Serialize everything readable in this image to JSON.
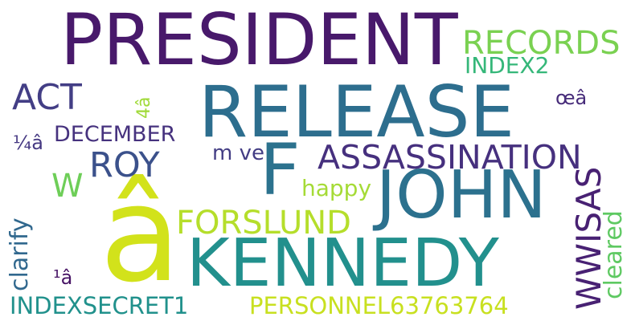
{
  "background": "#ffffff",
  "words": [
    {
      "id": "president",
      "text": "PRESIDENT",
      "color": "#48196b",
      "vertical": false
    },
    {
      "id": "release",
      "text": "RELEASE",
      "color": "#2d6e8e",
      "vertical": false
    },
    {
      "id": "john",
      "text": "JOHN",
      "color": "#2c718e",
      "vertical": false
    },
    {
      "id": "kennedy",
      "text": "KENNEDY",
      "color": "#22908d",
      "vertical": false
    },
    {
      "id": "f",
      "text": "F",
      "color": "#2c728e",
      "vertical": false
    },
    {
      "id": "a-hat-large",
      "text": "â",
      "color": "#d2e21b",
      "vertical": false
    },
    {
      "id": "assassination",
      "text": "ASSASSINATION",
      "color": "#46307e",
      "vertical": false
    },
    {
      "id": "records",
      "text": "RECORDS",
      "color": "#7ad151",
      "vertical": false
    },
    {
      "id": "index2",
      "text": "INDEX2",
      "color": "#35b779",
      "vertical": false
    },
    {
      "id": "act",
      "text": "ACT",
      "color": "#433e85",
      "vertical": false
    },
    {
      "id": "december",
      "text": "DECEMBER",
      "color": "#46327e",
      "vertical": false
    },
    {
      "id": "roy",
      "text": "ROY",
      "color": "#3b518b",
      "vertical": false
    },
    {
      "id": "forslund",
      "text": "FORSLUND",
      "color": "#b5de2b",
      "vertical": false
    },
    {
      "id": "wwisas",
      "text": "WWISAS",
      "color": "#482173",
      "vertical": true
    },
    {
      "id": "cleared",
      "text": "cleared",
      "color": "#5ec962",
      "vertical": true
    },
    {
      "id": "clarify",
      "text": "clarify",
      "color": "#31688e",
      "vertical": true
    },
    {
      "id": "indexsecret1",
      "text": "INDEXSECRET1",
      "color": "#21918c",
      "vertical": false
    },
    {
      "id": "personnel",
      "text": "PERSONNEL63763764",
      "color": "#c8e020",
      "vertical": false
    },
    {
      "id": "happy",
      "text": "happy",
      "color": "#a5db36",
      "vertical": false
    },
    {
      "id": "w",
      "text": "W",
      "color": "#6ece58",
      "vertical": false
    },
    {
      "id": "mve",
      "text": "m ve",
      "color": "#433d84",
      "vertical": false
    },
    {
      "id": "4a",
      "text": "4â",
      "color": "#a0da39",
      "vertical": true
    },
    {
      "id": "oe-a",
      "text": "œâ",
      "color": "#472c7a",
      "vertical": false
    },
    {
      "id": "quarter-a",
      "text": "¼â",
      "color": "#453882",
      "vertical": false
    },
    {
      "id": "one-a",
      "text": "¹â",
      "color": "#471365",
      "vertical": false
    }
  ]
}
